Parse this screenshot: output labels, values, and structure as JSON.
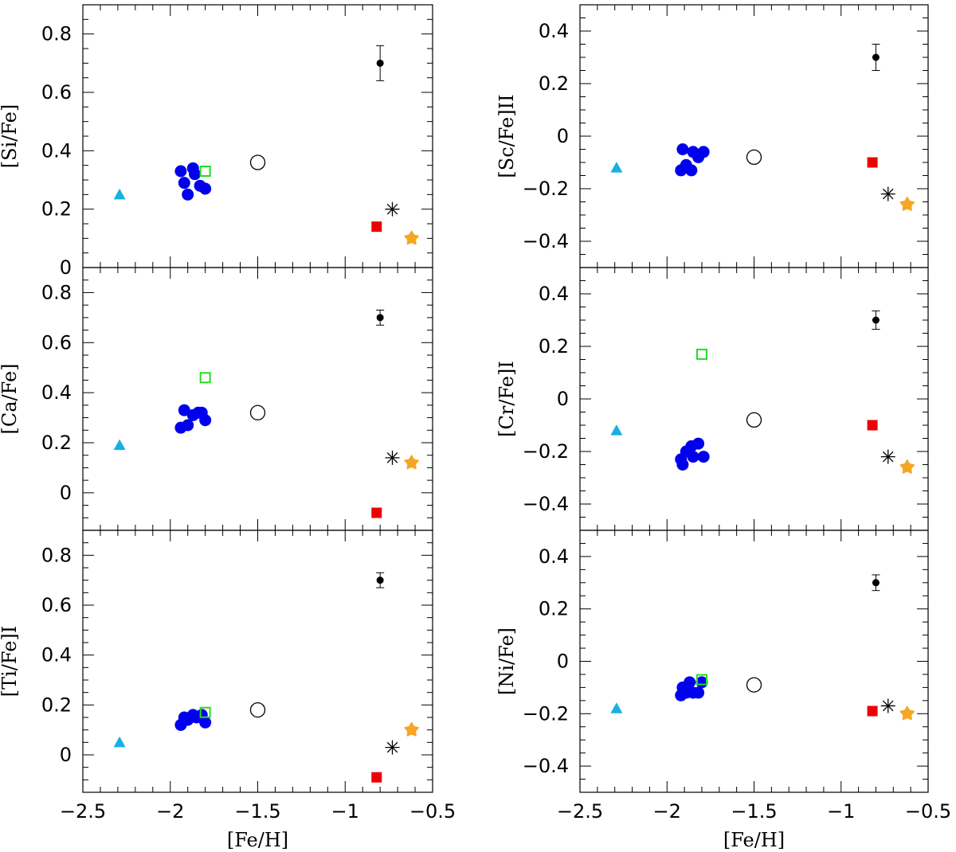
{
  "colors": {
    "blue": "#0000ee",
    "green": "#22dd22",
    "cyan": "#17b0e0",
    "red": "#ee0000",
    "orange": "#f5a623",
    "black": "#000000"
  },
  "chart_data": [
    {
      "type": "scatter",
      "panel": "top-left",
      "ylabel": "[Si/Fe]",
      "xlabel": "",
      "xlim": [
        -2.5,
        -0.5
      ],
      "ylim": [
        0,
        0.9
      ],
      "yticks": [
        0,
        0.2,
        0.4,
        0.6,
        0.8
      ],
      "ytick_labels": [
        "0",
        "0.2",
        "0.4",
        "0.6",
        "0.8"
      ],
      "xticks": [
        -2.5,
        -2,
        -1.5,
        -1,
        -0.5
      ],
      "xtick_labels": [],
      "series": [
        {
          "name": "filled-circles",
          "marker": "filled-circle",
          "color": "blue",
          "points": [
            [
              -1.94,
              0.33
            ],
            [
              -1.92,
              0.29
            ],
            [
              -1.9,
              0.25
            ],
            [
              -1.87,
              0.34
            ],
            [
              -1.86,
              0.32
            ],
            [
              -1.83,
              0.28
            ],
            [
              -1.8,
              0.27
            ]
          ]
        },
        {
          "name": "open-square",
          "marker": "open-square",
          "color": "green",
          "points": [
            [
              -1.8,
              0.33
            ]
          ]
        },
        {
          "name": "open-circle",
          "marker": "open-circle",
          "color": "black",
          "points": [
            [
              -1.5,
              0.36
            ]
          ]
        },
        {
          "name": "triangle",
          "marker": "triangle",
          "color": "cyan",
          "points": [
            [
              -2.29,
              0.25
            ]
          ]
        },
        {
          "name": "filled-square",
          "marker": "filled-square",
          "color": "red",
          "points": [
            [
              -0.82,
              0.14
            ]
          ]
        },
        {
          "name": "asterisk",
          "marker": "asterisk",
          "color": "black",
          "points": [
            [
              -0.73,
              0.2
            ]
          ]
        },
        {
          "name": "star",
          "marker": "star",
          "color": "orange",
          "points": [
            [
              -0.62,
              0.1
            ]
          ]
        },
        {
          "name": "error-point",
          "marker": "errorbar",
          "color": "black",
          "points": [
            [
              -0.8,
              0.7,
              0.06
            ]
          ]
        }
      ]
    },
    {
      "type": "scatter",
      "panel": "top-right",
      "ylabel": "[Sc/Fe]II",
      "xlabel": "",
      "xlim": [
        -2.5,
        -0.5
      ],
      "ylim": [
        -0.5,
        0.5
      ],
      "yticks": [
        -0.4,
        -0.2,
        0,
        0.2,
        0.4
      ],
      "ytick_labels": [
        "−0.4",
        "−0.2",
        "0",
        "0.2",
        "0.4"
      ],
      "xticks": [
        -2.5,
        -2,
        -1.5,
        -1,
        -0.5
      ],
      "xtick_labels": [],
      "series": [
        {
          "name": "filled-circles",
          "marker": "filled-circle",
          "color": "blue",
          "points": [
            [
              -1.92,
              -0.13
            ],
            [
              -1.91,
              -0.05
            ],
            [
              -1.89,
              -0.11
            ],
            [
              -1.86,
              -0.13
            ],
            [
              -1.85,
              -0.06
            ],
            [
              -1.82,
              -0.08
            ],
            [
              -1.79,
              -0.06
            ]
          ]
        },
        {
          "name": "open-circle",
          "marker": "open-circle",
          "color": "black",
          "points": [
            [
              -1.5,
              -0.08
            ]
          ]
        },
        {
          "name": "triangle",
          "marker": "triangle",
          "color": "cyan",
          "points": [
            [
              -2.29,
              -0.12
            ]
          ]
        },
        {
          "name": "filled-square",
          "marker": "filled-square",
          "color": "red",
          "points": [
            [
              -0.82,
              -0.1
            ]
          ]
        },
        {
          "name": "asterisk",
          "marker": "asterisk",
          "color": "black",
          "points": [
            [
              -0.73,
              -0.22
            ]
          ]
        },
        {
          "name": "star",
          "marker": "star",
          "color": "orange",
          "points": [
            [
              -0.62,
              -0.26
            ]
          ]
        },
        {
          "name": "error-point",
          "marker": "errorbar",
          "color": "black",
          "points": [
            [
              -0.8,
              0.3,
              0.05
            ]
          ]
        }
      ]
    },
    {
      "type": "scatter",
      "panel": "middle-left",
      "ylabel": "[Ca/Fe]",
      "xlabel": "",
      "xlim": [
        -2.5,
        -0.5
      ],
      "ylim": [
        -0.15,
        0.9
      ],
      "yticks": [
        0,
        0.2,
        0.4,
        0.6,
        0.8
      ],
      "ytick_labels": [
        "0",
        "0.2",
        "0.4",
        "0.6",
        "0.8"
      ],
      "xticks": [
        -2.5,
        -2,
        -1.5,
        -1,
        -0.5
      ],
      "xtick_labels": [],
      "series": [
        {
          "name": "filled-circles",
          "marker": "filled-circle",
          "color": "blue",
          "points": [
            [
              -1.94,
              0.26
            ],
            [
              -1.92,
              0.33
            ],
            [
              -1.9,
              0.27
            ],
            [
              -1.87,
              0.31
            ],
            [
              -1.84,
              0.32
            ],
            [
              -1.82,
              0.32
            ],
            [
              -1.8,
              0.29
            ]
          ]
        },
        {
          "name": "open-square",
          "marker": "open-square",
          "color": "green",
          "points": [
            [
              -1.8,
              0.46
            ]
          ]
        },
        {
          "name": "open-circle",
          "marker": "open-circle",
          "color": "black",
          "points": [
            [
              -1.5,
              0.32
            ]
          ]
        },
        {
          "name": "triangle",
          "marker": "triangle",
          "color": "cyan",
          "points": [
            [
              -2.29,
              0.19
            ]
          ]
        },
        {
          "name": "filled-square",
          "marker": "filled-square",
          "color": "red",
          "points": [
            [
              -0.82,
              -0.08
            ]
          ]
        },
        {
          "name": "asterisk",
          "marker": "asterisk",
          "color": "black",
          "points": [
            [
              -0.73,
              0.14
            ]
          ]
        },
        {
          "name": "star",
          "marker": "star",
          "color": "orange",
          "points": [
            [
              -0.62,
              0.12
            ]
          ]
        },
        {
          "name": "error-point",
          "marker": "errorbar",
          "color": "black",
          "points": [
            [
              -0.8,
              0.7,
              0.03
            ]
          ]
        }
      ]
    },
    {
      "type": "scatter",
      "panel": "middle-right",
      "ylabel": "[Cr/Fe]I",
      "xlabel": "",
      "xlim": [
        -2.5,
        -0.5
      ],
      "ylim": [
        -0.5,
        0.5
      ],
      "yticks": [
        -0.4,
        -0.2,
        0,
        0.2,
        0.4
      ],
      "ytick_labels": [
        "−0.4",
        "−0.2",
        "0",
        "0.2",
        "0.4"
      ],
      "xticks": [
        -2.5,
        -2,
        -1.5,
        -1,
        -0.5
      ],
      "xtick_labels": [],
      "series": [
        {
          "name": "filled-circles",
          "marker": "filled-circle",
          "color": "blue",
          "points": [
            [
              -1.92,
              -0.23
            ],
            [
              -1.91,
              -0.25
            ],
            [
              -1.89,
              -0.2
            ],
            [
              -1.86,
              -0.18
            ],
            [
              -1.85,
              -0.22
            ],
            [
              -1.82,
              -0.17
            ],
            [
              -1.79,
              -0.22
            ]
          ]
        },
        {
          "name": "open-square",
          "marker": "open-square",
          "color": "green",
          "points": [
            [
              -1.8,
              0.17
            ]
          ]
        },
        {
          "name": "open-circle",
          "marker": "open-circle",
          "color": "black",
          "points": [
            [
              -1.5,
              -0.08
            ]
          ]
        },
        {
          "name": "triangle",
          "marker": "triangle",
          "color": "cyan",
          "points": [
            [
              -2.29,
              -0.12
            ]
          ]
        },
        {
          "name": "filled-square",
          "marker": "filled-square",
          "color": "red",
          "points": [
            [
              -0.82,
              -0.1
            ]
          ]
        },
        {
          "name": "asterisk",
          "marker": "asterisk",
          "color": "black",
          "points": [
            [
              -0.73,
              -0.22
            ]
          ]
        },
        {
          "name": "star",
          "marker": "star",
          "color": "orange",
          "points": [
            [
              -0.62,
              -0.26
            ]
          ]
        },
        {
          "name": "error-point",
          "marker": "errorbar",
          "color": "black",
          "points": [
            [
              -0.8,
              0.3,
              0.035
            ]
          ]
        }
      ]
    },
    {
      "type": "scatter",
      "panel": "bottom-left",
      "ylabel": "[Ti/Fe]I",
      "xlabel": "[Fe/H]",
      "xlim": [
        -2.5,
        -0.5
      ],
      "ylim": [
        -0.15,
        0.9
      ],
      "yticks": [
        0,
        0.2,
        0.4,
        0.6,
        0.8
      ],
      "ytick_labels": [
        "0",
        "0.2",
        "0.4",
        "0.6",
        "0.8"
      ],
      "xticks": [
        -2.5,
        -2,
        -1.5,
        -1,
        -0.5
      ],
      "xtick_labels": [
        "−2.5",
        "−2",
        "−1.5",
        "−1",
        "−0.5"
      ],
      "series": [
        {
          "name": "filled-circles",
          "marker": "filled-circle",
          "color": "blue",
          "points": [
            [
              -1.94,
              0.12
            ],
            [
              -1.92,
              0.15
            ],
            [
              -1.9,
              0.14
            ],
            [
              -1.87,
              0.16
            ],
            [
              -1.85,
              0.15
            ],
            [
              -1.82,
              0.16
            ],
            [
              -1.8,
              0.13
            ]
          ]
        },
        {
          "name": "open-square",
          "marker": "open-square",
          "color": "green",
          "points": [
            [
              -1.8,
              0.17
            ]
          ]
        },
        {
          "name": "open-circle",
          "marker": "open-circle",
          "color": "black",
          "points": [
            [
              -1.5,
              0.18
            ]
          ]
        },
        {
          "name": "triangle",
          "marker": "triangle",
          "color": "cyan",
          "points": [
            [
              -2.29,
              0.05
            ]
          ]
        },
        {
          "name": "filled-square",
          "marker": "filled-square",
          "color": "red",
          "points": [
            [
              -0.82,
              -0.09
            ]
          ]
        },
        {
          "name": "asterisk",
          "marker": "asterisk",
          "color": "black",
          "points": [
            [
              -0.73,
              0.03
            ]
          ]
        },
        {
          "name": "star",
          "marker": "star",
          "color": "orange",
          "points": [
            [
              -0.62,
              0.1
            ]
          ]
        },
        {
          "name": "error-point",
          "marker": "errorbar",
          "color": "black",
          "points": [
            [
              -0.8,
              0.7,
              0.03
            ]
          ]
        }
      ]
    },
    {
      "type": "scatter",
      "panel": "bottom-right",
      "ylabel": "[Ni/Fe]",
      "xlabel": "[Fe/H]",
      "xlim": [
        -2.5,
        -0.5
      ],
      "ylim": [
        -0.5,
        0.5
      ],
      "yticks": [
        -0.4,
        -0.2,
        0,
        0.2,
        0.4
      ],
      "ytick_labels": [
        "−0.4",
        "−0.2",
        "0",
        "0.2",
        "0.4"
      ],
      "xticks": [
        -2.5,
        -2,
        -1.5,
        -1,
        -0.5
      ],
      "xtick_labels": [
        "−2.5",
        "−2",
        "−1.5",
        "−1",
        "−0.5"
      ],
      "series": [
        {
          "name": "filled-circles",
          "marker": "filled-circle",
          "color": "blue",
          "points": [
            [
              -1.92,
              -0.13
            ],
            [
              -1.91,
              -0.1
            ],
            [
              -1.89,
              -0.12
            ],
            [
              -1.87,
              -0.08
            ],
            [
              -1.85,
              -0.12
            ],
            [
              -1.82,
              -0.12
            ],
            [
              -1.8,
              -0.08
            ]
          ]
        },
        {
          "name": "open-square",
          "marker": "open-square",
          "color": "green",
          "points": [
            [
              -1.8,
              -0.07
            ]
          ]
        },
        {
          "name": "open-circle",
          "marker": "open-circle",
          "color": "black",
          "points": [
            [
              -1.5,
              -0.09
            ]
          ]
        },
        {
          "name": "triangle",
          "marker": "triangle",
          "color": "cyan",
          "points": [
            [
              -2.29,
              -0.18
            ]
          ]
        },
        {
          "name": "filled-square",
          "marker": "filled-square",
          "color": "red",
          "points": [
            [
              -0.82,
              -0.19
            ]
          ]
        },
        {
          "name": "asterisk",
          "marker": "asterisk",
          "color": "black",
          "points": [
            [
              -0.73,
              -0.17
            ]
          ]
        },
        {
          "name": "star",
          "marker": "star",
          "color": "orange",
          "points": [
            [
              -0.62,
              -0.2
            ]
          ]
        },
        {
          "name": "error-point",
          "marker": "errorbar",
          "color": "black",
          "points": [
            [
              -0.8,
              0.3,
              0.03
            ]
          ]
        }
      ]
    }
  ]
}
